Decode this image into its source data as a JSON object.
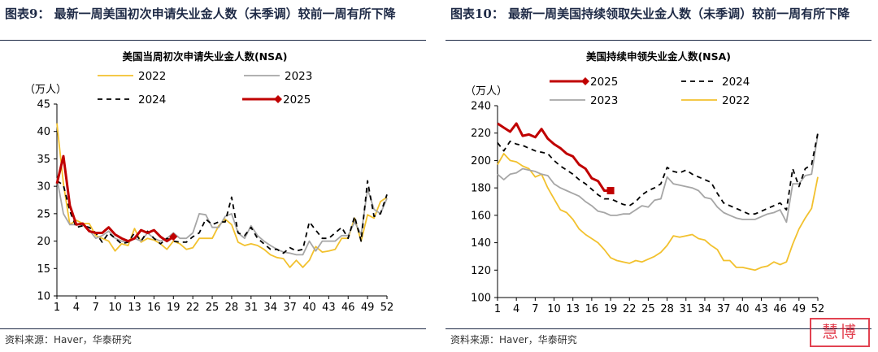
{
  "panels": [
    {
      "figure_title": "图表9：  最新一周美国初次申请失业金人数（未季调）较前一周有所下降",
      "source": "资料来源：Haver，华泰研究"
    },
    {
      "figure_title": "图表10：  最新一周美国持续领取失业金人数（未季调）较前一周有所下降",
      "source": "资料来源：Haver，华泰研究"
    }
  ],
  "watermark": "慧博",
  "colors": {
    "2022": "#f2c12e",
    "2023": "#a6a6a6",
    "2024": "#000000",
    "2025": "#c00000",
    "title": "#1e2a46"
  },
  "chart_data": [
    {
      "type": "line",
      "title": "美国当周初次申请失业金人数(NSA)",
      "unit": "（万人）",
      "ylim": [
        10,
        45
      ],
      "yticks": [
        10,
        15,
        20,
        25,
        30,
        35,
        40,
        45
      ],
      "xticks": [
        1,
        4,
        7,
        10,
        13,
        16,
        19,
        22,
        25,
        28,
        31,
        34,
        37,
        40,
        43,
        46,
        49,
        52
      ],
      "xlim": [
        1,
        52
      ],
      "legend_order": [
        "2022",
        "2023",
        "2024",
        "2025"
      ],
      "series": [
        {
          "name": "2022",
          "values": [
            41.5,
            30.5,
            23,
            23.8,
            23.2,
            23.2,
            21,
            20.5,
            20,
            18.2,
            19.5,
            19.2,
            22.3,
            19.8,
            20.5,
            20.2,
            19.5,
            18.5,
            20,
            19.5,
            18.5,
            18.8,
            20.5,
            20.5,
            20.5,
            22.8,
            24,
            23,
            19.8,
            19.2,
            19.5,
            19.2,
            18.5,
            17.5,
            17,
            16.8,
            15.2,
            16.5,
            15.2,
            16.5,
            19,
            18,
            18.2,
            18.5,
            20.5,
            20.5,
            24.2,
            20,
            24.8,
            24.2,
            27.2,
            28
          ]
        },
        {
          "name": "2023",
          "values": [
            31.5,
            25,
            23,
            23,
            23,
            22,
            20.5,
            21,
            21.8,
            20.5,
            20,
            19.8,
            20.5,
            20,
            21.5,
            20.5,
            20,
            20.5,
            21.5,
            20.5,
            20.5,
            21.5,
            25,
            24.8,
            22.5,
            22.5,
            24.5,
            25,
            21.5,
            20.5,
            22.8,
            21,
            20,
            19.2,
            18.5,
            18,
            17.8,
            17.5,
            17.5,
            20,
            18.2,
            20,
            20,
            20,
            21,
            21,
            23.5,
            21.2,
            29.5,
            25.8,
            25,
            27.8
          ]
        },
        {
          "name": "2024",
          "values": [
            31,
            30.2,
            25.5,
            22.5,
            22.8,
            22.5,
            21.5,
            19.8,
            21.5,
            20.5,
            19.5,
            19.8,
            21.5,
            20,
            21.8,
            20.5,
            19.5,
            20.5,
            20,
            19.8,
            19.8,
            20.8,
            21.5,
            24,
            23,
            23.5,
            23.5,
            28,
            21.5,
            21,
            22.5,
            20.5,
            19.5,
            18.5,
            18.5,
            17.8,
            18.8,
            18.2,
            18.5,
            23.5,
            22,
            20.5,
            20.5,
            21.5,
            22.5,
            20.5,
            24.5,
            20,
            31,
            24.5,
            25,
            28.5
          ]
        },
        {
          "name": "2025",
          "values": [
            30.5,
            35.5,
            26.5,
            23,
            23.2,
            21.8,
            21.5,
            21.5,
            22.5,
            21.2,
            20.5,
            20,
            20.5,
            22,
            21.5,
            22,
            20.8,
            20,
            20.8
          ]
        }
      ]
    },
    {
      "type": "line",
      "title": "美国持续申领失业金人数(NSA)",
      "unit": "（万人）",
      "ylim": [
        100,
        240
      ],
      "yticks": [
        100,
        120,
        140,
        160,
        180,
        200,
        220,
        240
      ],
      "xticks": [
        1,
        4,
        7,
        10,
        13,
        16,
        19,
        22,
        25,
        28,
        31,
        34,
        37,
        40,
        43,
        46,
        49,
        52
      ],
      "xlim": [
        1,
        52
      ],
      "legend_order": [
        "2025",
        "2024",
        "2023",
        "2022"
      ],
      "series": [
        {
          "name": "2022",
          "values": [
            197,
            205,
            200,
            199,
            196,
            194,
            188,
            190,
            180,
            172,
            164,
            162,
            157,
            150,
            146,
            143,
            140,
            135,
            129,
            127,
            126,
            125,
            127,
            126,
            128,
            130,
            133,
            138,
            145,
            144,
            145,
            146,
            143,
            142,
            138,
            135,
            127,
            127,
            122,
            122,
            121,
            120,
            122,
            123,
            126,
            124,
            126,
            139,
            150,
            158,
            165,
            188
          ]
        },
        {
          "name": "2023",
          "values": [
            190,
            186,
            190,
            191,
            194,
            193,
            192,
            190,
            189,
            183,
            180,
            178,
            176,
            174,
            170,
            167,
            163,
            162,
            160,
            160,
            161,
            161,
            164,
            167,
            166,
            171,
            172,
            188,
            183,
            182,
            181,
            180,
            178,
            173,
            172,
            166,
            162,
            160,
            158,
            157,
            157,
            157,
            159,
            161,
            162,
            164,
            155,
            183,
            183,
            189,
            190,
            219
          ]
        },
        {
          "name": "2024",
          "values": [
            213,
            207,
            214,
            212,
            211,
            209,
            207,
            206,
            205,
            200,
            196,
            193,
            190,
            186,
            183,
            179,
            175,
            172,
            172,
            170,
            168,
            167,
            170,
            175,
            178,
            180,
            183,
            195,
            192,
            191,
            193,
            190,
            188,
            186,
            184,
            176,
            169,
            167,
            165,
            163,
            161,
            161,
            163,
            165,
            167,
            169,
            164,
            194,
            181,
            194,
            197,
            220
          ]
        },
        {
          "name": "2025",
          "values": [
            227,
            224,
            221,
            227,
            218,
            219,
            217,
            223,
            216,
            212,
            209,
            205,
            203,
            197,
            194,
            187,
            185,
            178,
            178
          ]
        }
      ]
    }
  ]
}
